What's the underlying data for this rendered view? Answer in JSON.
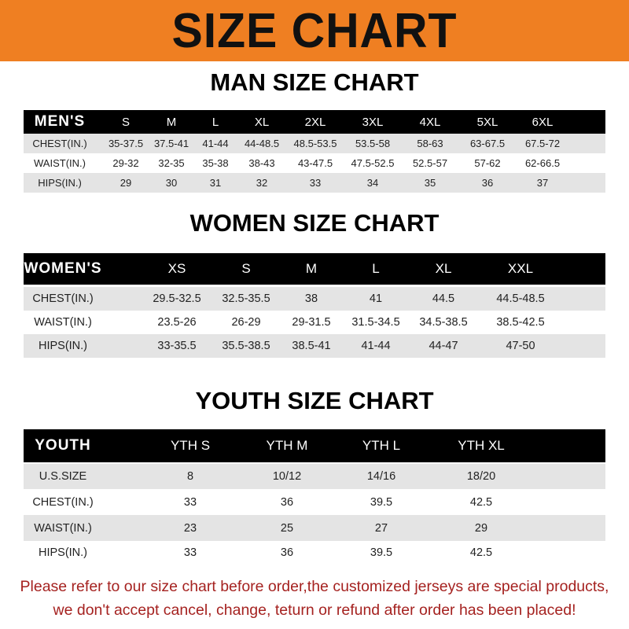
{
  "banner_title": "SIZE CHART",
  "men": {
    "title": "MAN SIZE CHART",
    "header": [
      "MEN'S",
      "S",
      "M",
      "L",
      "XL",
      "2XL",
      "3XL",
      "4XL",
      "5XL",
      "6XL"
    ],
    "rows": [
      [
        "CHEST(IN.)",
        "35-37.5",
        "37.5-41",
        "41-44",
        "44-48.5",
        "48.5-53.5",
        "53.5-58",
        "58-63",
        "63-67.5",
        "67.5-72"
      ],
      [
        "WAIST(IN.)",
        "29-32",
        "32-35",
        "35-38",
        "38-43",
        "43-47.5",
        "47.5-52.5",
        "52.5-57",
        "57-62",
        "62-66.5"
      ],
      [
        "HIPS(IN.)",
        "29",
        "30",
        "31",
        "32",
        "33",
        "34",
        "35",
        "36",
        "37"
      ]
    ]
  },
  "women": {
    "title": "WOMEN SIZE CHART",
    "header": [
      "WOMEN'S",
      "XS",
      "S",
      "M",
      "L",
      "XL",
      "XXL"
    ],
    "rows": [
      [
        "CHEST(IN.)",
        "29.5-32.5",
        "32.5-35.5",
        "38",
        "41",
        "44.5",
        "44.5-48.5"
      ],
      [
        "WAIST(IN.)",
        "23.5-26",
        "26-29",
        "29-31.5",
        "31.5-34.5",
        "34.5-38.5",
        "38.5-42.5"
      ],
      [
        "HIPS(IN.)",
        "33-35.5",
        "35.5-38.5",
        "38.5-41",
        "41-44",
        "44-47",
        "47-50"
      ]
    ]
  },
  "youth": {
    "title": "YOUTH SIZE CHART",
    "header": [
      "YOUTH",
      "YTH S",
      "YTH M",
      "YTH L",
      "YTH XL"
    ],
    "rows": [
      [
        "U.S.SIZE",
        "8",
        "10/12",
        "14/16",
        "18/20"
      ],
      [
        "CHEST(IN.)",
        "33",
        "36",
        "39.5",
        "42.5"
      ],
      [
        "WAIST(IN.)",
        "23",
        "25",
        "27",
        "29"
      ],
      [
        "HIPS(IN.)",
        "33",
        "36",
        "39.5",
        "42.5"
      ]
    ]
  },
  "footer": {
    "line1": "Please refer to our size chart before order,the customized jerseys are special products,",
    "line2": "we don't accept cancel, change, teturn or refund after order has been placed!"
  },
  "colors": {
    "banner": "#ef7f22",
    "header_row": "#000000",
    "stripe": "#e4e4e4",
    "notice": "#a52220"
  }
}
